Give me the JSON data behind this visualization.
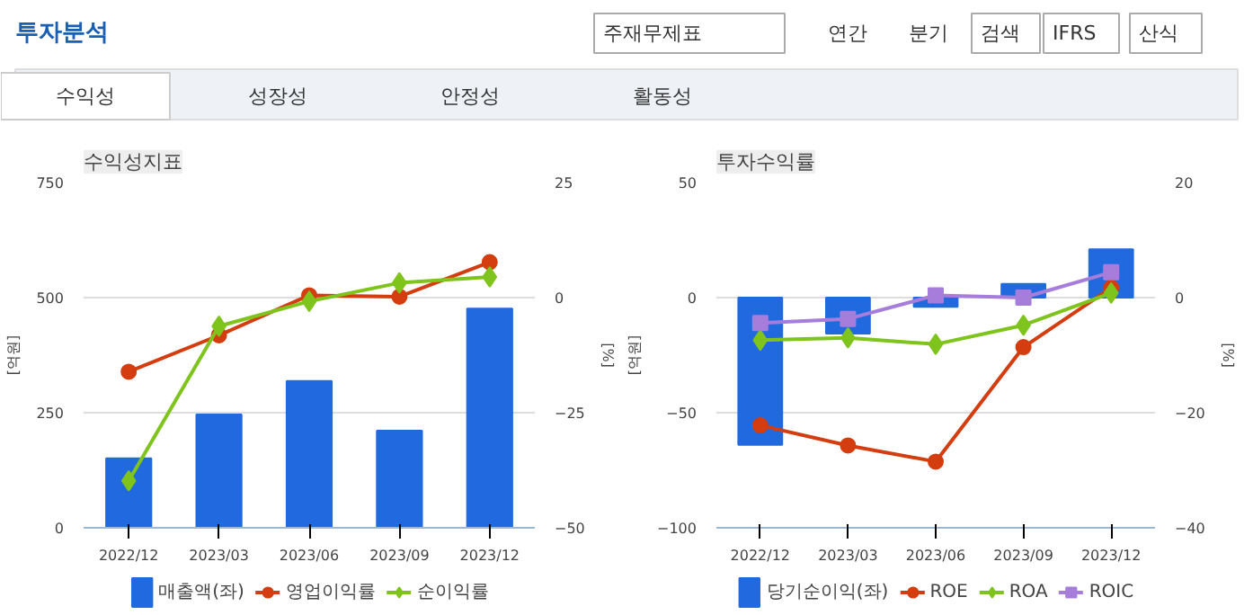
{
  "chart_data": [
    {
      "type": "other",
      "title": "투자분석",
      "annotations": [
        "주재무제표",
        "연간",
        "분기",
        "검색",
        "IFRS",
        "산식",
        "수익성",
        "성장성",
        "안정성",
        "활동성"
      ]
    },
    {
      "type": "bar",
      "title": "수익성지표",
      "ylabel": "[억원]",
      "y2label": "[%]",
      "categories": [
        "2022/12",
        "2023/03",
        "2023/06",
        "2023/09",
        "2023/12"
      ],
      "ylim": [
        0,
        750
      ],
      "yticks": [
        0,
        250,
        500,
        750
      ],
      "y2lim": [
        -50,
        25
      ],
      "y2ticks": [
        -50,
        -25,
        0,
        25
      ],
      "grid": "y",
      "legend": "bottom",
      "series": [
        {
          "name": "매출액(좌)",
          "type": "bar",
          "color": "#2169de",
          "values": [
            151,
            246,
            319,
            211,
            476
          ]
        },
        {
          "name": "영업이익률",
          "type": "line",
          "axis": "y2",
          "marker": "circle",
          "color": "#d43d0f",
          "values": [
            -16.1,
            -8.2,
            0.5,
            0.2,
            7.7
          ]
        },
        {
          "name": "순이익률",
          "type": "line",
          "axis": "y2",
          "marker": "diamond",
          "color": "#7fc41c",
          "values": [
            -39.8,
            -6.2,
            -0.8,
            3.2,
            4.5
          ]
        }
      ]
    },
    {
      "type": "bar",
      "title": "투자수익률",
      "ylabel": "[억원]",
      "y2label": "[%]",
      "categories": [
        "2022/12",
        "2023/03",
        "2023/06",
        "2023/09",
        "2023/12"
      ],
      "ylim": [
        -100,
        50
      ],
      "yticks": [
        -100,
        -50,
        0,
        50
      ],
      "y2lim": [
        -40,
        20
      ],
      "y2ticks": [
        -40,
        -20,
        0,
        20
      ],
      "grid": "y",
      "legend": "bottom",
      "series": [
        {
          "name": "당기순이익(좌)",
          "type": "bar",
          "color": "#2169de",
          "values": [
            -64,
            -15.6,
            -4,
            6,
            21
          ]
        },
        {
          "name": "ROE",
          "type": "line",
          "axis": "y2",
          "marker": "circle",
          "color": "#d43d0f",
          "values": [
            -22.2,
            -25.7,
            -28.5,
            -8.6,
            1.7
          ]
        },
        {
          "name": "ROA",
          "type": "line",
          "axis": "y2",
          "marker": "diamond",
          "color": "#7fc41c",
          "values": [
            -7.4,
            -7.0,
            -8.1,
            -4.8,
            0.8
          ]
        },
        {
          "name": "ROIC",
          "type": "line",
          "axis": "y2",
          "marker": "square",
          "color": "#a67ddb",
          "values": [
            -4.4,
            -3.7,
            0.4,
            0.0,
            4.4
          ]
        }
      ]
    }
  ]
}
